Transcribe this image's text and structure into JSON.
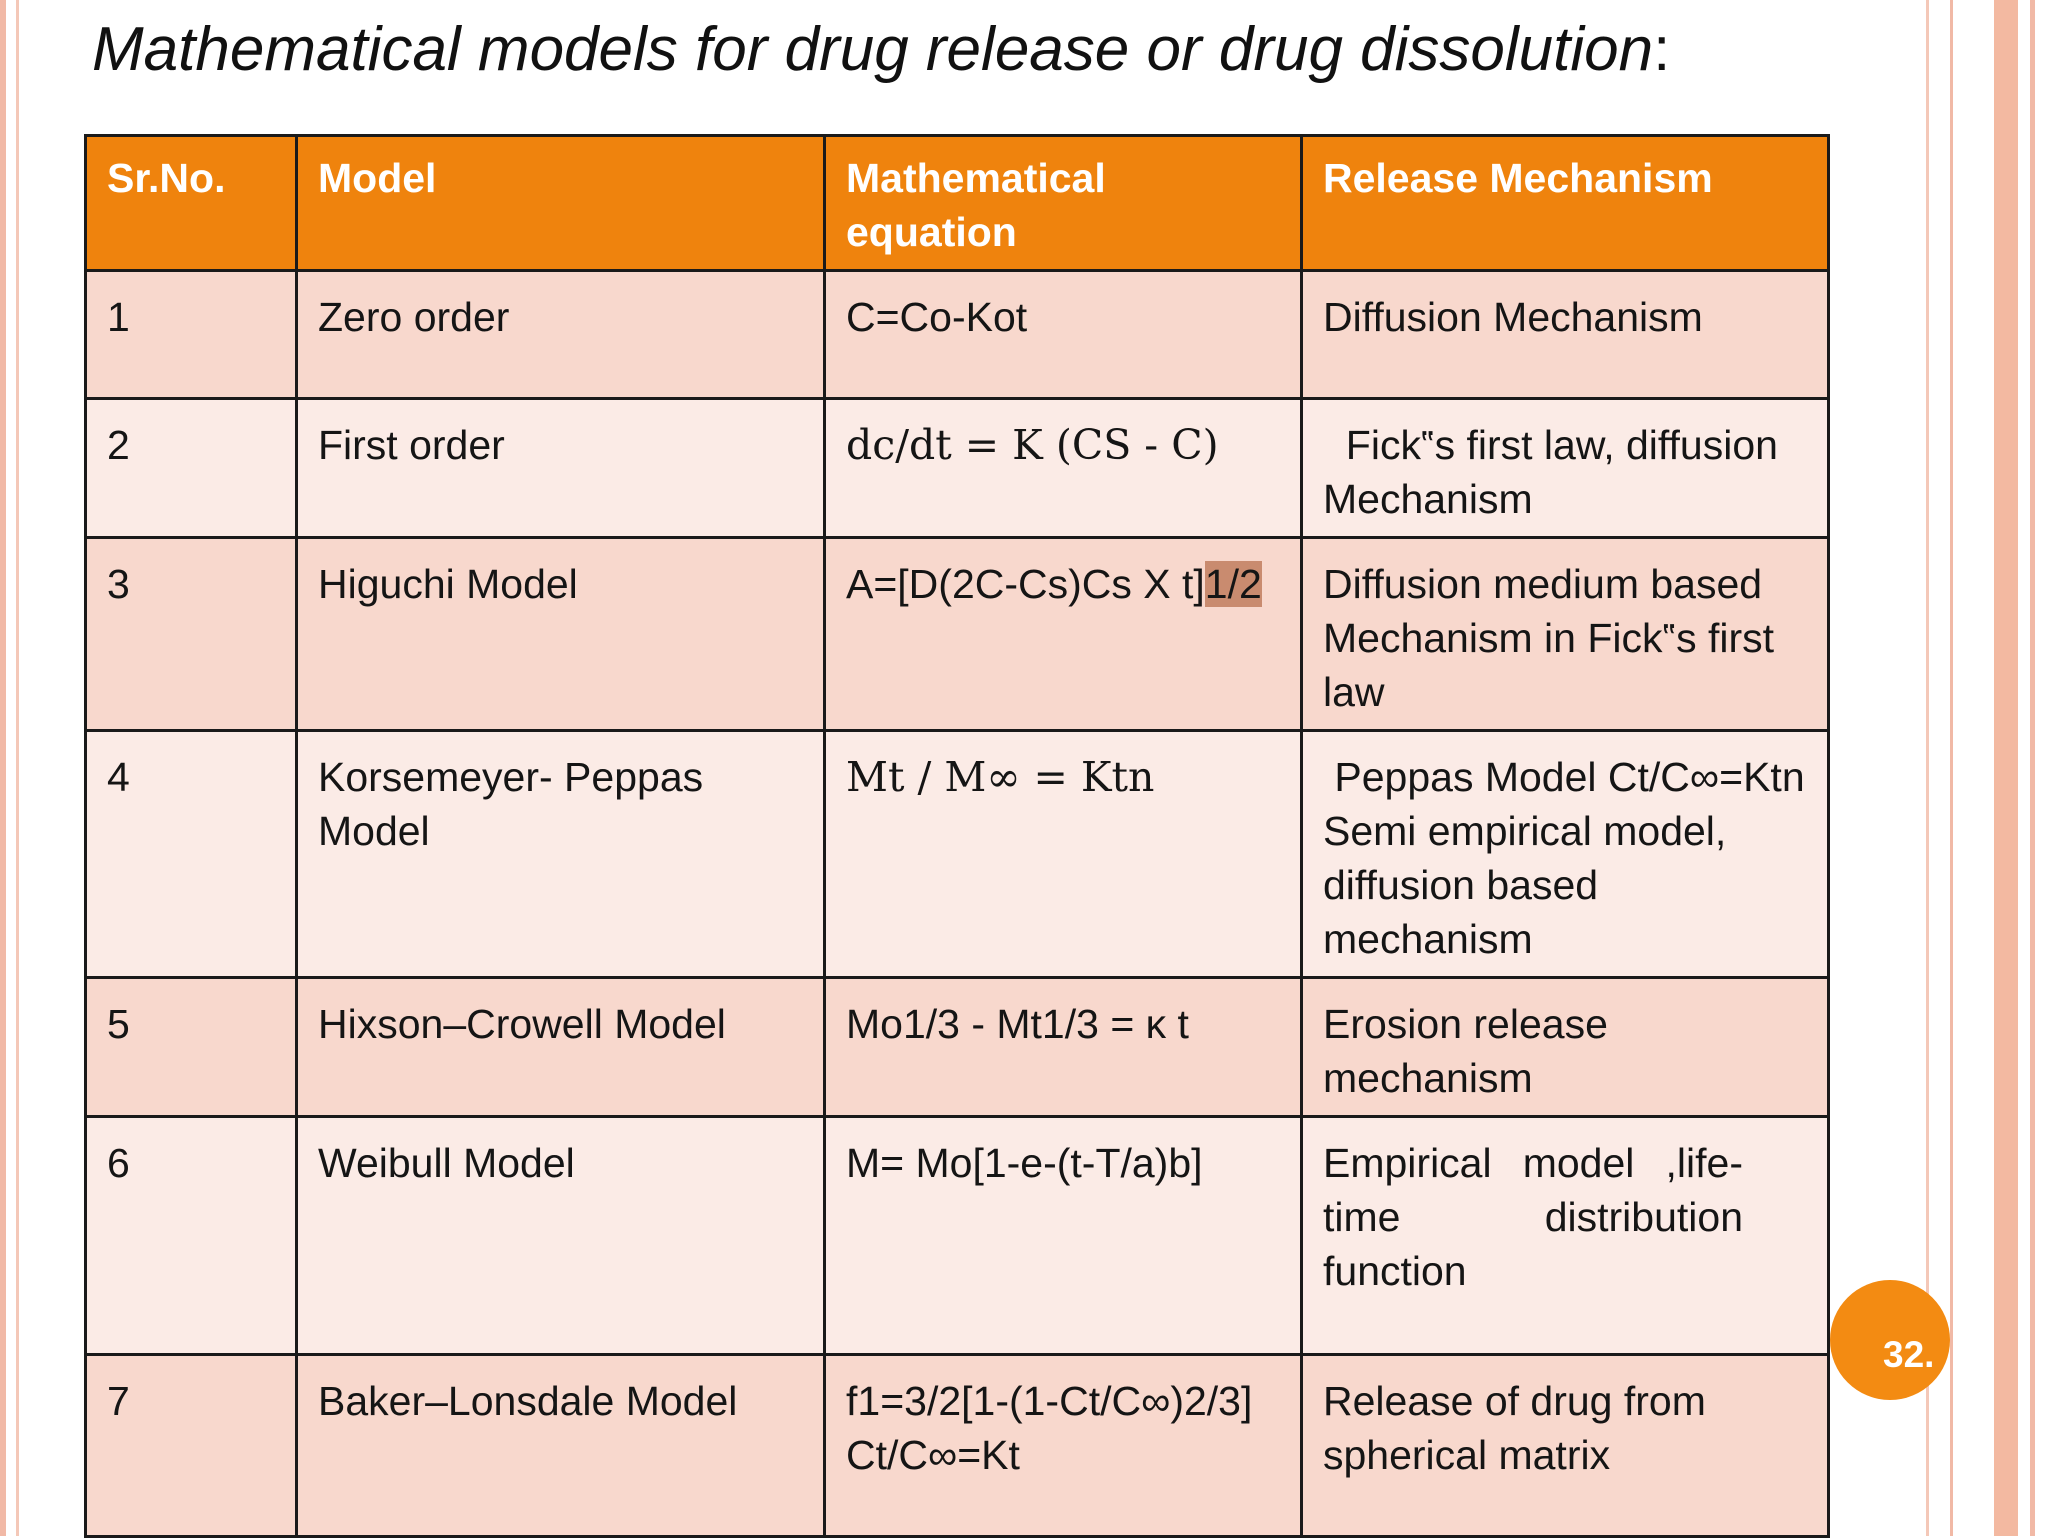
{
  "slide": {
    "title": "Mathematical models for drug release or drug dissolution",
    "title_colon": ":",
    "page_number": "32."
  },
  "table": {
    "headers": [
      "Sr.No.",
      "Model",
      "Mathematical equation",
      "Release Mechanism"
    ],
    "rows": [
      {
        "no": "1",
        "model": "Zero order",
        "equation": "C=Co-Kot",
        "mechanism": "Diffusion Mechanism"
      },
      {
        "no": "2",
        "model": "First order",
        "equation": "dc/dt = K (CS - C)",
        "mechanism": "  Fick‟s first law, diffusion Mechanism"
      },
      {
        "no": "3",
        "model": "Higuchi Model",
        "equation": "A=[D(2C-Cs)Cs X t]",
        "equation_highlight": "1/2",
        "mechanism": "Diffusion medium based     Mechanism in Fick‟s first law"
      },
      {
        "no": "4",
        "model": "Korsemeyer- Peppas Model",
        "equation": "Mt / M∞ = Ktn",
        "mechanism": " Peppas Model Ct/C∞=Ktn Semi empirical model, diffusion based mechanism"
      },
      {
        "no": "5",
        "model": "Hixson–Crowell Model",
        "equation": "Mo1/3 - Mt1/3 = κ t",
        "mechanism": "Erosion release mechanism"
      },
      {
        "no": "6",
        "model": "Weibull Model",
        "equation": "M= Mo[1-e-(t-T/a)b]",
        "mechanism": "Empirical model ,life-time distribution function"
      },
      {
        "no": "7",
        "model": "Baker–Lonsdale Model",
        "equation": "f1=3/2[1-(1-Ct/C∞)2/3] Ct/C∞=Kt",
        "mechanism": "Release of drug from spherical matrix"
      }
    ]
  }
}
